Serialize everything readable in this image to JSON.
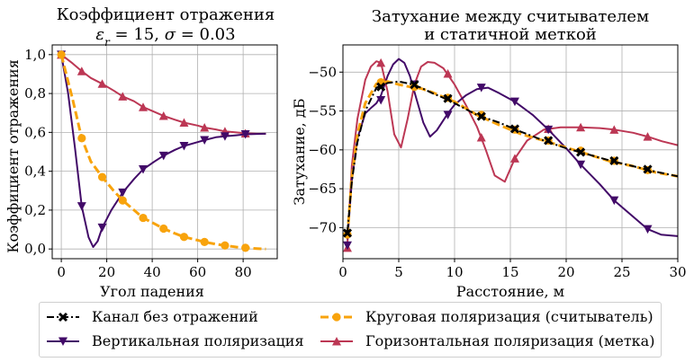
{
  "colors": {
    "black": "#000000",
    "purple": "#420a68",
    "orange": "#f8a30c",
    "crimson": "#bc3754"
  },
  "chart_data": [
    {
      "type": "line",
      "title_line1": "Коэффициент отражения",
      "title_line2": "εr = 15, σ = 0.03",
      "xlabel": "Угол падения",
      "ylabel": "Коэффициент отражения",
      "xlim": [
        -4,
        95
      ],
      "ylim": [
        -0.05,
        1.05
      ],
      "xticks": [
        0,
        20,
        40,
        60,
        80
      ],
      "yticks": [
        0.0,
        0.2,
        0.4,
        0.6,
        0.8,
        1.0
      ],
      "ytick_labels": [
        "0,0",
        "0,2",
        "0,4",
        "0,6",
        "0,8",
        "1,0"
      ],
      "grid": true,
      "series": [
        {
          "name": "Круговая поляризация (считыватель)",
          "color": "orange",
          "style": "dashed",
          "marker": "circle",
          "x": [
            0,
            5,
            9,
            13,
            18,
            23,
            27,
            32,
            36,
            41,
            45,
            50,
            54,
            60,
            63,
            68,
            72,
            77,
            81,
            86,
            90
          ],
          "y": [
            1.0,
            0.77,
            0.57,
            0.45,
            0.37,
            0.3,
            0.25,
            0.2,
            0.16,
            0.13,
            0.105,
            0.08,
            0.062,
            0.045,
            0.036,
            0.025,
            0.018,
            0.01,
            0.006,
            0.002,
            0.0
          ],
          "marker_x": [
            0,
            9,
            18,
            27,
            36,
            45,
            54,
            63,
            72,
            81
          ]
        },
        {
          "name": "Вертикальная поляризация",
          "color": "purple",
          "style": "solid",
          "marker": "triangle-down",
          "x": [
            0,
            3,
            6,
            9,
            12,
            14,
            16,
            18,
            22,
            27,
            32,
            36,
            41,
            45,
            50,
            54,
            60,
            63,
            68,
            72,
            77,
            81,
            86,
            90
          ],
          "y": [
            1.0,
            0.8,
            0.52,
            0.22,
            0.06,
            0.01,
            0.04,
            0.11,
            0.2,
            0.29,
            0.36,
            0.41,
            0.45,
            0.48,
            0.51,
            0.53,
            0.55,
            0.56,
            0.575,
            0.58,
            0.585,
            0.59,
            0.592,
            0.593
          ],
          "marker_x": [
            0,
            9,
            18,
            27,
            36,
            45,
            54,
            63,
            72,
            81
          ]
        },
        {
          "name": "Горизонтальная поляризация (метка)",
          "color": "crimson",
          "style": "solid",
          "marker": "triangle-up",
          "x": [
            0,
            5,
            9,
            13,
            18,
            23,
            27,
            32,
            36,
            41,
            45,
            50,
            54,
            60,
            63,
            68,
            72,
            77,
            81,
            86,
            90
          ],
          "y": [
            1.0,
            0.955,
            0.915,
            0.88,
            0.85,
            0.815,
            0.785,
            0.76,
            0.73,
            0.705,
            0.685,
            0.665,
            0.65,
            0.635,
            0.625,
            0.615,
            0.605,
            0.6,
            0.595,
            0.593,
            0.593
          ],
          "marker_x": [
            0,
            9,
            18,
            27,
            36,
            45,
            54,
            63,
            72,
            81
          ]
        }
      ]
    },
    {
      "type": "line",
      "title_line1": "Затухание между считывателем",
      "title_line2": "и статичной меткой",
      "xlabel": "Расстояние, м",
      "ylabel": "Затухание, дБ",
      "xlim": [
        0,
        30
      ],
      "ylim": [
        -74,
        -46.5
      ],
      "xticks": [
        0,
        5,
        10,
        15,
        20,
        25,
        30
      ],
      "yticks": [
        -70,
        -65,
        -60,
        -55,
        -50
      ],
      "grid": true,
      "series": [
        {
          "name": "Канал без отражений",
          "color": "black",
          "style": "dashdot",
          "marker": "x",
          "x": [
            0.4,
            0.8,
            1.3,
            2,
            3,
            4,
            5,
            6,
            7,
            8,
            9,
            10,
            12,
            14,
            16,
            18,
            20,
            22,
            24,
            26,
            28,
            30
          ],
          "y": [
            -70.5,
            -64,
            -59,
            -55,
            -52,
            -51.4,
            -51.2,
            -51.5,
            -52,
            -52.7,
            -53.3,
            -54,
            -55.5,
            -56.5,
            -57.7,
            -58.8,
            -59.8,
            -60.6,
            -61.4,
            -62.1,
            -62.8,
            -63.4
          ],
          "marker_x": [
            0.4,
            3.4,
            6.4,
            9.4,
            12.4,
            15.4,
            18.4,
            21.3,
            24.3,
            27.3
          ],
          "marker_y": [
            -70.7,
            -51.9,
            -51.6,
            -53.4,
            -55.7,
            -57.3,
            -58.8,
            -60.3,
            -61.4,
            -62.5
          ]
        },
        {
          "name": "Круговая поляризация (считыватель)",
          "color": "orange",
          "style": "dashed",
          "marker": "circle",
          "x": [
            0.4,
            0.8,
            1.3,
            2,
            3,
            4,
            5,
            6,
            7,
            8,
            9,
            10,
            12,
            14,
            16,
            18,
            20,
            22,
            24,
            26,
            28,
            30
          ],
          "y": [
            -71,
            -63.5,
            -58,
            -54,
            -51.5,
            -51.2,
            -51.6,
            -51.9,
            -52.1,
            -52.6,
            -53.2,
            -53.8,
            -55.5,
            -56.8,
            -58,
            -58.8,
            -59.7,
            -60.6,
            -61.5,
            -62.1,
            -62.9,
            -63.4
          ],
          "marker_x": [
            0.4,
            3.4,
            6.4,
            9.4,
            12.4,
            15.4,
            18.4,
            21.3,
            24.3,
            27.3
          ],
          "marker_y": [
            -70.9,
            -51.3,
            -51.9,
            -53.3,
            -55.5,
            -57.4,
            -58.8,
            -60.1,
            -61.4,
            -62.6
          ]
        },
        {
          "name": "Вертикальная поляризация",
          "color": "purple",
          "style": "solid",
          "marker": "triangle-down",
          "x": [
            0.4,
            0.8,
            1.3,
            2,
            2.6,
            3,
            3.4,
            4,
            4.5,
            5,
            5.5,
            6,
            6.6,
            7.2,
            7.8,
            8.4,
            9.4,
            10,
            11,
            12,
            13,
            14,
            15.4,
            17,
            18.4,
            20,
            21.3,
            23,
            24.3,
            26,
            27.3,
            28.5,
            30
          ],
          "y": [
            -71.5,
            -64,
            -58.5,
            -55.3,
            -54.5,
            -54,
            -53,
            -50.5,
            -49,
            -48.3,
            -48.8,
            -50.5,
            -53.5,
            -56.5,
            -58.3,
            -57.5,
            -55.3,
            -54.2,
            -53,
            -52.2,
            -52,
            -52.7,
            -53.8,
            -55.5,
            -57.4,
            -59.8,
            -61.9,
            -64.4,
            -66.5,
            -68.6,
            -70.2,
            -70.9,
            -71.1
          ],
          "marker_x": [
            0.4,
            3.4,
            6.4,
            9.4,
            12.4,
            15.4,
            18.4,
            21.3,
            24.3,
            27.3
          ],
          "marker_y": [
            -72.3,
            -53.6,
            -51.6,
            -55.5,
            -52.0,
            -53.8,
            -57.4,
            -61.9,
            -66.5,
            -70.2
          ]
        },
        {
          "name": "Горизонтальная поляризация (метка)",
          "color": "crimson",
          "style": "solid",
          "marker": "triangle-up",
          "x": [
            0.4,
            0.8,
            1.3,
            2,
            2.5,
            3,
            3.4,
            4,
            4.6,
            5.2,
            5.8,
            6.4,
            7,
            7.6,
            8.2,
            9,
            10,
            11,
            12,
            12.8,
            13.6,
            14.5,
            15.4,
            16.5,
            18,
            19.5,
            21.3,
            23,
            24.3,
            26,
            27.3,
            28.6,
            30
          ],
          "y": [
            -72,
            -62,
            -56,
            -51,
            -49.3,
            -48.6,
            -48.8,
            -52.5,
            -58,
            -59.7,
            -56,
            -51.6,
            -49.3,
            -48.7,
            -48.8,
            -49.5,
            -51.6,
            -54.2,
            -57,
            -60,
            -63.3,
            -64.1,
            -61.1,
            -58.8,
            -57.4,
            -57.1,
            -57.1,
            -57.2,
            -57.4,
            -57.8,
            -58.3,
            -58.9,
            -59.4
          ],
          "marker_x": [
            0.4,
            3.4,
            6.4,
            9.4,
            12.4,
            15.4,
            18.4,
            21.3,
            24.3,
            27.3
          ],
          "marker_y": [
            -72.6,
            -48.8,
            -51.6,
            -50.2,
            -58.4,
            -61.1,
            -57.3,
            -57.1,
            -57.4,
            -58.3
          ]
        }
      ]
    }
  ],
  "legend": [
    {
      "label": "Канал без отражений",
      "color": "black",
      "style": "dashdot",
      "marker": "x"
    },
    {
      "label": "Вертикальная поляризация",
      "color": "purple",
      "style": "solid",
      "marker": "triangle-down"
    },
    {
      "label": "Круговая поляризация (считыватель)",
      "color": "orange",
      "style": "dashed",
      "marker": "circle"
    },
    {
      "label": "Горизонтальная поляризация (метка)",
      "color": "crimson",
      "style": "solid",
      "marker": "triangle-up"
    }
  ]
}
